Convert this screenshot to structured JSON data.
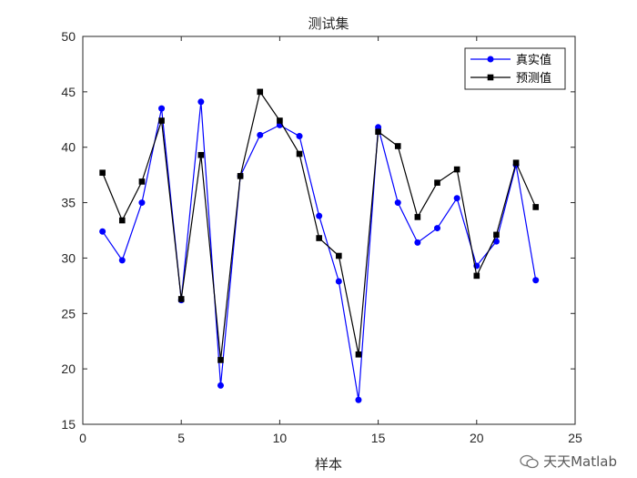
{
  "chart_data": {
    "type": "line",
    "title": "测试集",
    "xlabel": "样本",
    "ylabel": "",
    "xlim": [
      0,
      25
    ],
    "ylim": [
      15,
      50
    ],
    "xticks": [
      0,
      5,
      10,
      15,
      20,
      25
    ],
    "yticks": [
      15,
      20,
      25,
      30,
      35,
      40,
      45,
      50
    ],
    "grid": false,
    "legend_position": "top-right",
    "x": [
      1,
      2,
      3,
      4,
      5,
      6,
      7,
      8,
      9,
      10,
      11,
      12,
      13,
      14,
      15,
      16,
      17,
      18,
      19,
      20,
      21,
      22,
      23
    ],
    "series": [
      {
        "name": "真实值",
        "color": "#0000ff",
        "marker": "circle",
        "values": [
          32.4,
          29.8,
          35.0,
          43.5,
          26.2,
          44.1,
          18.5,
          37.4,
          41.1,
          42.0,
          41.0,
          33.8,
          27.9,
          17.2,
          41.8,
          35.0,
          31.4,
          32.7,
          35.4,
          29.3,
          31.5,
          38.4,
          28.0
        ]
      },
      {
        "name": "预测值",
        "color": "#000000",
        "marker": "square",
        "values": [
          37.7,
          33.4,
          36.9,
          42.4,
          26.3,
          39.3,
          20.8,
          37.4,
          45.0,
          42.4,
          39.4,
          31.8,
          30.2,
          21.3,
          41.4,
          40.1,
          33.7,
          36.8,
          38.0,
          28.4,
          32.1,
          38.6,
          34.6
        ]
      }
    ]
  },
  "watermark": {
    "text": "天天Matlab",
    "icon": "wechat-icon"
  }
}
